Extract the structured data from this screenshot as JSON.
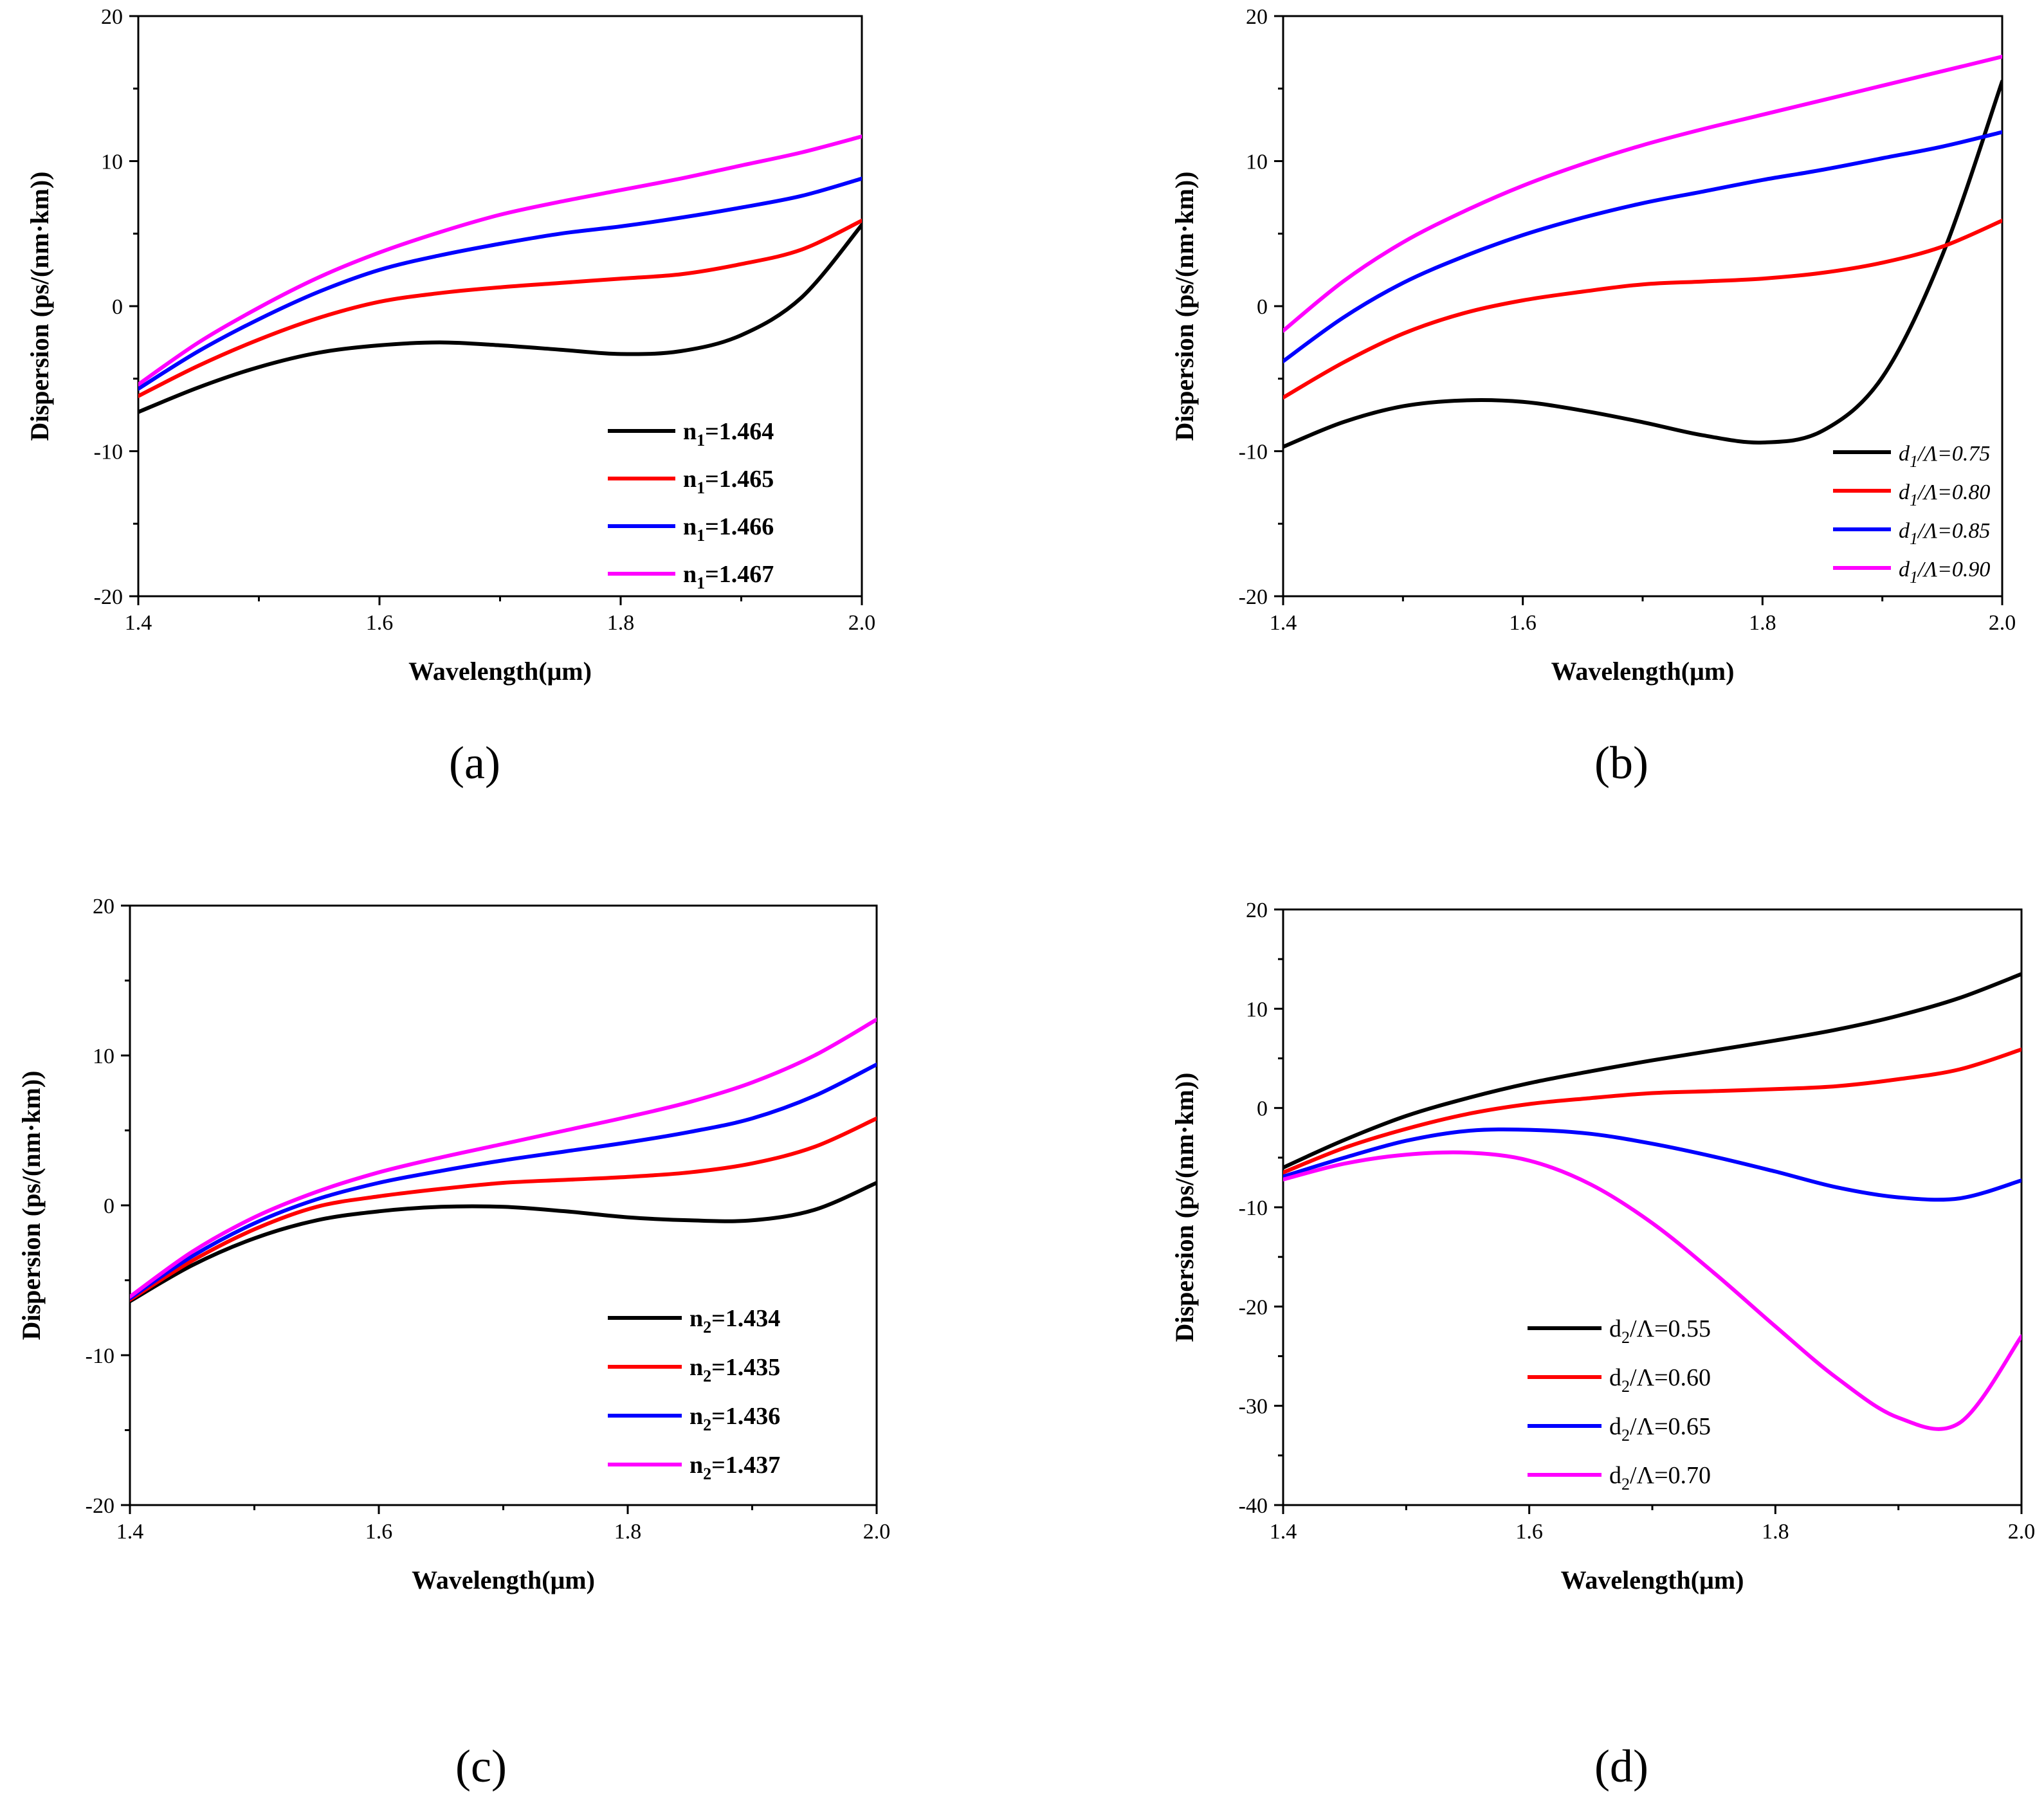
{
  "figure": {
    "panels": [
      "(a)",
      "(b)",
      "(c)",
      "(d)"
    ]
  },
  "chart_data": [
    {
      "id": "a",
      "panel_label": "(a)",
      "type": "line",
      "xlabel": "Wavelength(μm)",
      "ylabel": "Dispersion (ps/(nm·km))",
      "xlim": [
        1.4,
        2.0
      ],
      "ylim": [
        -20,
        20
      ],
      "xticks": [
        1.4,
        1.6,
        1.8,
        2.0
      ],
      "xtick_labels": [
        "1.4",
        "1.6",
        "1.8",
        "2.0"
      ],
      "yticks": [
        -20,
        -10,
        0,
        10,
        20
      ],
      "ytick_labels": [
        "-20",
        "-10",
        "0",
        "10",
        "20"
      ],
      "legend_position": "lower-right",
      "legend_style": "bold",
      "x": [
        1.4,
        1.45,
        1.5,
        1.55,
        1.6,
        1.65,
        1.7,
        1.75,
        1.8,
        1.85,
        1.9,
        1.95,
        2.0
      ],
      "series": [
        {
          "name": "n",
          "sub": "1",
          "value": "=1.464",
          "color": "#000000",
          "values": [
            -7.3,
            -5.6,
            -4.2,
            -3.2,
            -2.7,
            -2.5,
            -2.7,
            -3.0,
            -3.3,
            -3.1,
            -2.0,
            0.6,
            5.6
          ]
        },
        {
          "name": "n",
          "sub": "1",
          "value": "=1.465",
          "color": "#ff0000",
          "values": [
            -6.2,
            -4.1,
            -2.3,
            -0.8,
            0.3,
            0.9,
            1.3,
            1.6,
            1.9,
            2.2,
            2.9,
            3.9,
            5.9
          ]
        },
        {
          "name": "n",
          "sub": "1",
          "value": "=1.466",
          "color": "#0000ff",
          "values": [
            -5.7,
            -3.1,
            -0.9,
            1.0,
            2.5,
            3.5,
            4.3,
            5.0,
            5.5,
            6.1,
            6.8,
            7.6,
            8.8
          ]
        },
        {
          "name": "n",
          "sub": "1",
          "value": "=1.467",
          "color": "#ff00ff",
          "values": [
            -5.4,
            -2.5,
            -0.1,
            2.0,
            3.7,
            5.1,
            6.3,
            7.2,
            8.0,
            8.8,
            9.7,
            10.6,
            11.7
          ]
        }
      ]
    },
    {
      "id": "b",
      "panel_label": "(b)",
      "type": "line",
      "xlabel": "Wavelength(μm)",
      "ylabel": "Dispersion (ps/(nm·km))",
      "xlim": [
        1.4,
        2.0
      ],
      "ylim": [
        -20,
        20
      ],
      "xticks": [
        1.4,
        1.6,
        1.8,
        2.0
      ],
      "xtick_labels": [
        "1.4",
        "1.6",
        "1.8",
        "2.0"
      ],
      "yticks": [
        -20,
        -10,
        0,
        10,
        20
      ],
      "ytick_labels": [
        "-20",
        "-10",
        "0",
        "10",
        "20"
      ],
      "legend_position": "lower-right",
      "legend_style": "italic",
      "x": [
        1.4,
        1.45,
        1.5,
        1.55,
        1.6,
        1.65,
        1.7,
        1.75,
        1.8,
        1.85,
        1.9,
        1.95,
        2.0
      ],
      "series": [
        {
          "name": "d",
          "sub": "1",
          "value": "/Λ=0.75",
          "color": "#000000",
          "values": [
            -9.7,
            -8.0,
            -6.9,
            -6.5,
            -6.6,
            -7.2,
            -8.0,
            -8.9,
            -9.4,
            -8.6,
            -4.9,
            3.5,
            15.5
          ]
        },
        {
          "name": "d",
          "sub": "1",
          "value": "/Λ=0.80",
          "color": "#ff0000",
          "values": [
            -6.3,
            -3.9,
            -1.9,
            -0.5,
            0.4,
            1.0,
            1.5,
            1.7,
            1.9,
            2.3,
            3.0,
            4.1,
            5.9
          ]
        },
        {
          "name": "d",
          "sub": "1",
          "value": "/Λ=0.85",
          "color": "#0000ff",
          "values": [
            -3.8,
            -0.8,
            1.6,
            3.4,
            4.9,
            6.1,
            7.1,
            7.9,
            8.7,
            9.4,
            10.2,
            11.0,
            12.0
          ]
        },
        {
          "name": "d",
          "sub": "1",
          "value": "/Λ=0.90",
          "color": "#ff00ff",
          "values": [
            -1.7,
            1.7,
            4.4,
            6.5,
            8.3,
            9.8,
            11.1,
            12.2,
            13.2,
            14.2,
            15.2,
            16.2,
            17.2
          ]
        }
      ]
    },
    {
      "id": "c",
      "panel_label": "(c)",
      "type": "line",
      "xlabel": "Wavelength(μm)",
      "ylabel": "Dispersion (ps/(nm·km))",
      "xlim": [
        1.4,
        2.0
      ],
      "ylim": [
        -20,
        20
      ],
      "xticks": [
        1.4,
        1.6,
        1.8,
        2.0
      ],
      "xtick_labels": [
        "1.4",
        "1.6",
        "1.8",
        "2.0"
      ],
      "yticks": [
        -20,
        -10,
        0,
        10,
        20
      ],
      "ytick_labels": [
        "-20",
        "-10",
        "0",
        "10",
        "20"
      ],
      "legend_position": "lower-right",
      "legend_style": "bold",
      "x": [
        1.4,
        1.45,
        1.5,
        1.55,
        1.6,
        1.65,
        1.7,
        1.75,
        1.8,
        1.85,
        1.9,
        1.95,
        2.0
      ],
      "series": [
        {
          "name": "n",
          "sub": "2",
          "value": "=1.434",
          "color": "#000000",
          "values": [
            -6.4,
            -4.0,
            -2.2,
            -1.0,
            -0.4,
            -0.1,
            -0.1,
            -0.4,
            -0.8,
            -1.0,
            -1.0,
            -0.3,
            1.5
          ]
        },
        {
          "name": "n",
          "sub": "2",
          "value": "=1.435",
          "color": "#ff0000",
          "values": [
            -6.3,
            -3.7,
            -1.6,
            -0.1,
            0.6,
            1.1,
            1.5,
            1.7,
            1.9,
            2.2,
            2.8,
            3.9,
            5.8
          ]
        },
        {
          "name": "n",
          "sub": "2",
          "value": "=1.436",
          "color": "#0000ff",
          "values": [
            -6.2,
            -3.4,
            -1.2,
            0.4,
            1.5,
            2.3,
            3.0,
            3.6,
            4.2,
            4.9,
            5.8,
            7.3,
            9.4
          ]
        },
        {
          "name": "n",
          "sub": "2",
          "value": "=1.437",
          "color": "#ff00ff",
          "values": [
            -6.1,
            -3.1,
            -0.8,
            0.9,
            2.2,
            3.2,
            4.1,
            5.0,
            5.9,
            6.9,
            8.2,
            10.0,
            12.4
          ]
        }
      ]
    },
    {
      "id": "d",
      "panel_label": "(d)",
      "type": "line",
      "xlabel": "Wavelength(μm)",
      "ylabel": "Dispersion (ps/(nm·km))",
      "xlim": [
        1.4,
        2.0
      ],
      "ylim": [
        -40,
        20
      ],
      "xticks": [
        1.4,
        1.6,
        1.8,
        2.0
      ],
      "xtick_labels": [
        "1.4",
        "1.6",
        "1.8",
        "2.0"
      ],
      "yticks": [
        -40,
        -30,
        -20,
        -10,
        0,
        10,
        20
      ],
      "ytick_labels": [
        "-40",
        "-30",
        "-20",
        "-10",
        "0",
        "10",
        "20"
      ],
      "legend_position": "lower-left",
      "legend_style": "plain",
      "x": [
        1.4,
        1.45,
        1.5,
        1.55,
        1.6,
        1.65,
        1.7,
        1.75,
        1.8,
        1.85,
        1.9,
        1.95,
        2.0
      ],
      "series": [
        {
          "name": "d",
          "sub": "2",
          "value": "/Λ=0.55",
          "color": "#000000",
          "values": [
            -6.0,
            -3.2,
            -0.8,
            1.0,
            2.5,
            3.7,
            4.8,
            5.8,
            6.8,
            7.9,
            9.3,
            11.1,
            13.5
          ]
        },
        {
          "name": "d",
          "sub": "2",
          "value": "/Λ=0.60",
          "color": "#ff0000",
          "values": [
            -6.5,
            -4.0,
            -2.1,
            -0.6,
            0.4,
            1.0,
            1.5,
            1.7,
            1.9,
            2.2,
            2.9,
            3.9,
            5.9
          ]
        },
        {
          "name": "d",
          "sub": "2",
          "value": "/Λ=0.65",
          "color": "#0000ff",
          "values": [
            -6.9,
            -5.0,
            -3.3,
            -2.3,
            -2.2,
            -2.6,
            -3.6,
            -4.9,
            -6.4,
            -8.0,
            -9.0,
            -9.1,
            -7.3
          ]
        },
        {
          "name": "d",
          "sub": "2",
          "value": "/Λ=0.70",
          "color": "#ff00ff",
          "values": [
            -7.2,
            -5.6,
            -4.7,
            -4.5,
            -5.3,
            -7.7,
            -11.6,
            -16.6,
            -22.0,
            -27.2,
            -31.2,
            -31.7,
            -23.0
          ]
        }
      ]
    }
  ]
}
